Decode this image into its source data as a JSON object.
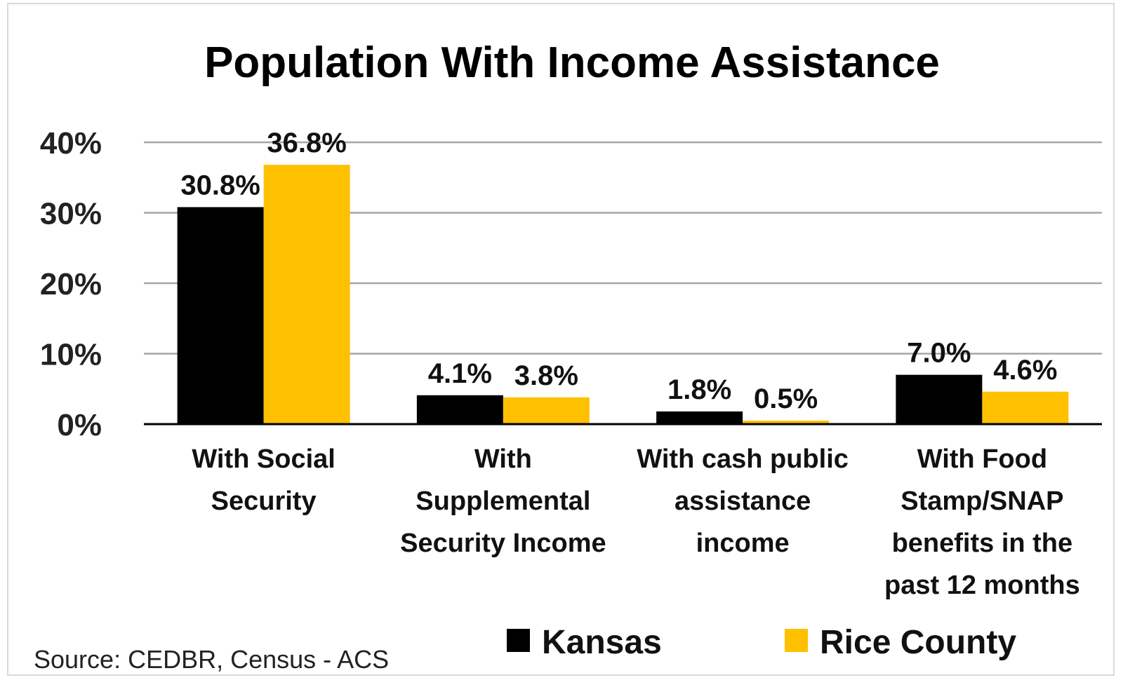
{
  "chart_data": {
    "type": "bar",
    "title": "Population With Income Assistance",
    "categories": [
      [
        "With Social",
        "Security"
      ],
      [
        "With",
        "Supplemental",
        "Security Income"
      ],
      [
        "With cash public",
        "assistance",
        "income"
      ],
      [
        "With Food",
        "Stamp/SNAP",
        "benefits in the",
        "past 12 months"
      ]
    ],
    "series": [
      {
        "name": "Kansas",
        "color": "#000000",
        "values": [
          30.8,
          4.1,
          1.8,
          7.0
        ],
        "labels": [
          "30.8%",
          "4.1%",
          "1.8%",
          "7.0%"
        ]
      },
      {
        "name": "Rice County",
        "color": "#FFC000",
        "values": [
          36.8,
          3.8,
          0.5,
          4.6
        ],
        "labels": [
          "36.8%",
          "3.8%",
          "0.5%",
          "4.6%"
        ]
      }
    ],
    "ylim": [
      0,
      40
    ],
    "yticks": [
      0,
      10,
      20,
      30,
      40
    ],
    "ytick_labels": [
      "0%",
      "10%",
      "20%",
      "30%",
      "40%"
    ],
    "grid": true,
    "legend_position": "bottom",
    "source": "Source: CEDBR, Census - ACS"
  }
}
